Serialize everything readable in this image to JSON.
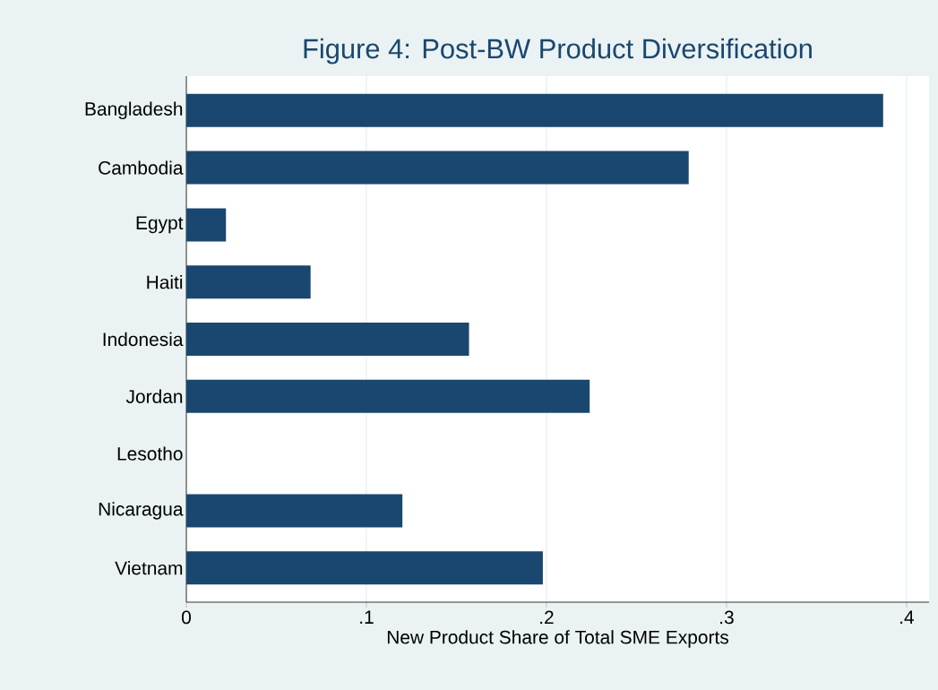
{
  "chart_data": {
    "type": "bar",
    "orientation": "horizontal",
    "title": "Figure 4: Post-BW Product Diversification",
    "xlabel": "New Product Share of Total SME Exports",
    "categories": [
      "Bangladesh",
      "Cambodia",
      "Egypt",
      "Haiti",
      "Indonesia",
      "Jordan",
      "Lesotho",
      "Nicaragua",
      "Vietnam"
    ],
    "values": [
      0.387,
      0.279,
      0.022,
      0.069,
      0.157,
      0.224,
      0,
      0.12,
      0.198
    ],
    "color": "#1a476f",
    "xlim": [
      0,
      0.4125
    ],
    "xticks": [
      0,
      {
        "value": 0.1,
        "label": ".1"
      },
      {
        "value": 0.2,
        "label": ".2"
      },
      {
        "value": 0.3,
        "label": ".3"
      },
      {
        "value": 0.4,
        "label": ".4"
      }
    ],
    "grid": "x"
  }
}
